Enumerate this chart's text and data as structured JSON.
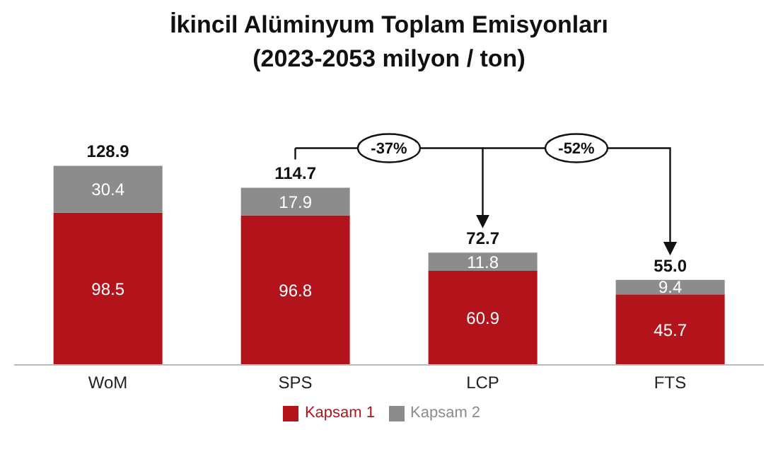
{
  "chart_data": {
    "type": "bar",
    "title": "İkincil Alüminyum Toplam Emisyonları",
    "subtitle": "(2023-2053 milyon / ton)",
    "categories": [
      "WoM",
      "SPS",
      "LCP",
      "FTS"
    ],
    "series": [
      {
        "name": "Kapsam 1",
        "color": "#b3141c",
        "values": [
          98.5,
          96.8,
          60.9,
          45.7
        ]
      },
      {
        "name": "Kapsam 2",
        "color": "#8c8c8c",
        "values": [
          30.4,
          17.9,
          11.8,
          9.4
        ]
      }
    ],
    "stacked": true,
    "data_labels": true,
    "totals": [
      "128.9",
      "114.7",
      "72.7",
      "55.0"
    ],
    "annotations": [
      "-37%",
      "-52%"
    ],
    "grid": false,
    "legend": "bottom"
  }
}
